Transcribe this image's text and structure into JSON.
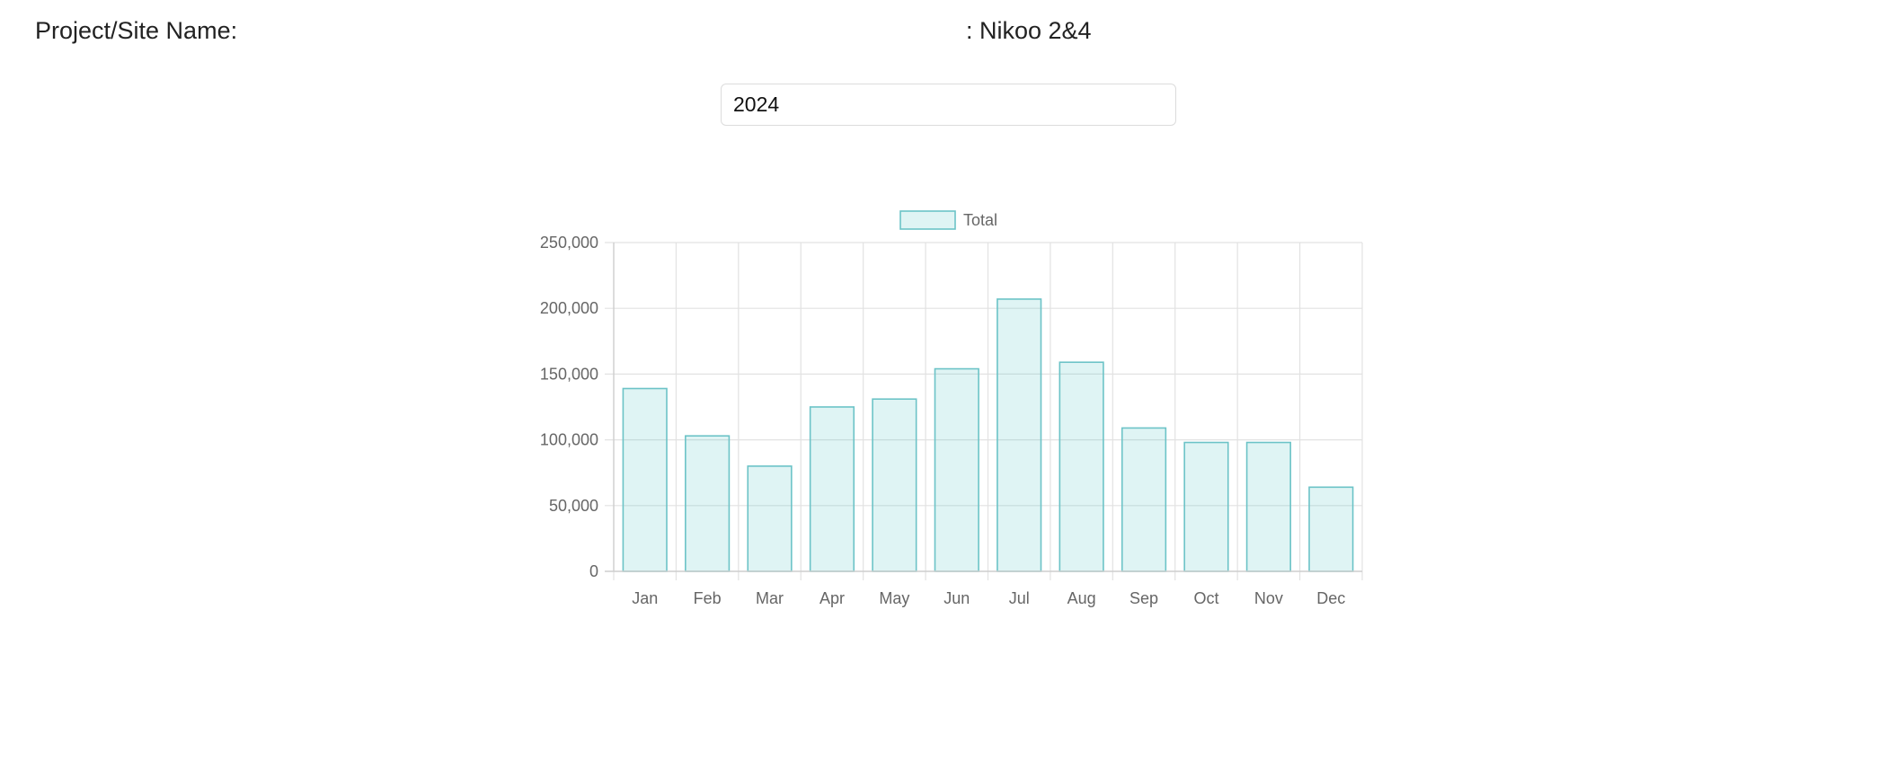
{
  "header": {
    "label": "Project/Site Name:",
    "value": ": Nikoo 2&4"
  },
  "year_input": {
    "value": "2024"
  },
  "colors": {
    "bar_fill": "rgba(75,192,192,0.18)",
    "bar_border": "#6cc3c7",
    "grid": "#e2e2e2"
  },
  "chart_data": {
    "type": "bar",
    "categories": [
      "Jan",
      "Feb",
      "Mar",
      "Apr",
      "May",
      "Jun",
      "Jul",
      "Aug",
      "Sep",
      "Oct",
      "Nov",
      "Dec"
    ],
    "series": [
      {
        "name": "Total",
        "values": [
          139000,
          103000,
          80000,
          125000,
          131000,
          154000,
          207000,
          159000,
          109000,
          98000,
          98000,
          64000
        ]
      }
    ],
    "yticks": [
      "0",
      "50,000",
      "100,000",
      "150,000",
      "200,000",
      "250,000"
    ],
    "ylim": [
      0,
      250000
    ],
    "grid": true,
    "legend_position": "top-center"
  }
}
